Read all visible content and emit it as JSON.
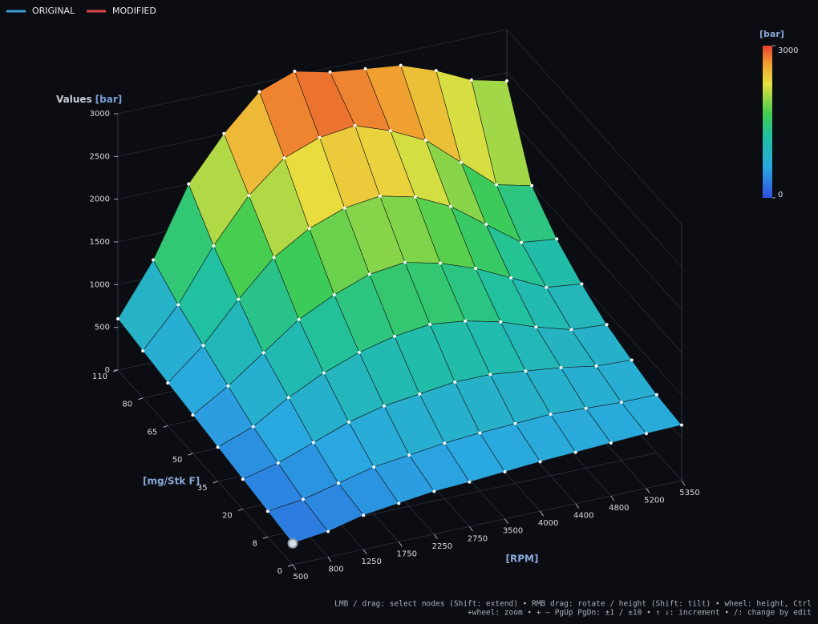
{
  "chart_data": {
    "type": "surface",
    "legend": [
      {
        "name": "ORIGINAL",
        "color": "#3aa0d8"
      },
      {
        "name": "MODIFIED",
        "color": "#e04848"
      }
    ],
    "z_title": "Values",
    "z_unit": "[bar]",
    "x_title": "[RPM]",
    "y_title": "[mg/Stk F]",
    "x": [
      500,
      800,
      1250,
      1750,
      2250,
      2750,
      3500,
      4000,
      4400,
      4800,
      5200,
      5350
    ],
    "y": [
      0,
      8,
      20,
      35,
      50,
      65,
      80,
      110
    ],
    "values": [
      [
        250,
        300,
        400,
        450,
        500,
        520,
        550,
        580,
        600,
        620,
        640,
        650
      ],
      [
        300,
        350,
        450,
        550,
        600,
        650,
        680,
        700,
        720,
        700,
        680,
        680
      ],
      [
        350,
        450,
        600,
        750,
        850,
        900,
        950,
        950,
        900,
        850,
        780,
        760
      ],
      [
        400,
        550,
        800,
        1000,
        1150,
        1250,
        1300,
        1250,
        1150,
        1000,
        880,
        850
      ],
      [
        450,
        700,
        1000,
        1300,
        1500,
        1650,
        1700,
        1600,
        1450,
        1250,
        1050,
        1000
      ],
      [
        500,
        850,
        1300,
        1700,
        1950,
        2100,
        2150,
        2050,
        1850,
        1550,
        1250,
        1200
      ],
      [
        550,
        1000,
        1600,
        2100,
        2450,
        2600,
        2650,
        2500,
        2300,
        1950,
        1600,
        1500
      ],
      [
        600,
        1200,
        2000,
        2500,
        2900,
        3050,
        2950,
        2900,
        2850,
        2700,
        2500,
        2400
      ]
    ],
    "zlim": [
      0,
      3000
    ],
    "zticks": [
      0,
      500,
      1000,
      1500,
      2000,
      2500,
      3000
    ],
    "colorbar": {
      "title": "[bar]",
      "ticks": [
        0,
        3000
      ]
    },
    "grid": true,
    "help": [
      "LMB / drag: select nodes (Shift: extend)   •   RMB drag: rotate / height (Shift: tilt)   •   wheel: height, Ctrl",
      "+wheel: zoom   •   + – PgUp PgDn: ±1 / ±10   •   ↑ ↓: increment   •   /: change by edit"
    ]
  }
}
